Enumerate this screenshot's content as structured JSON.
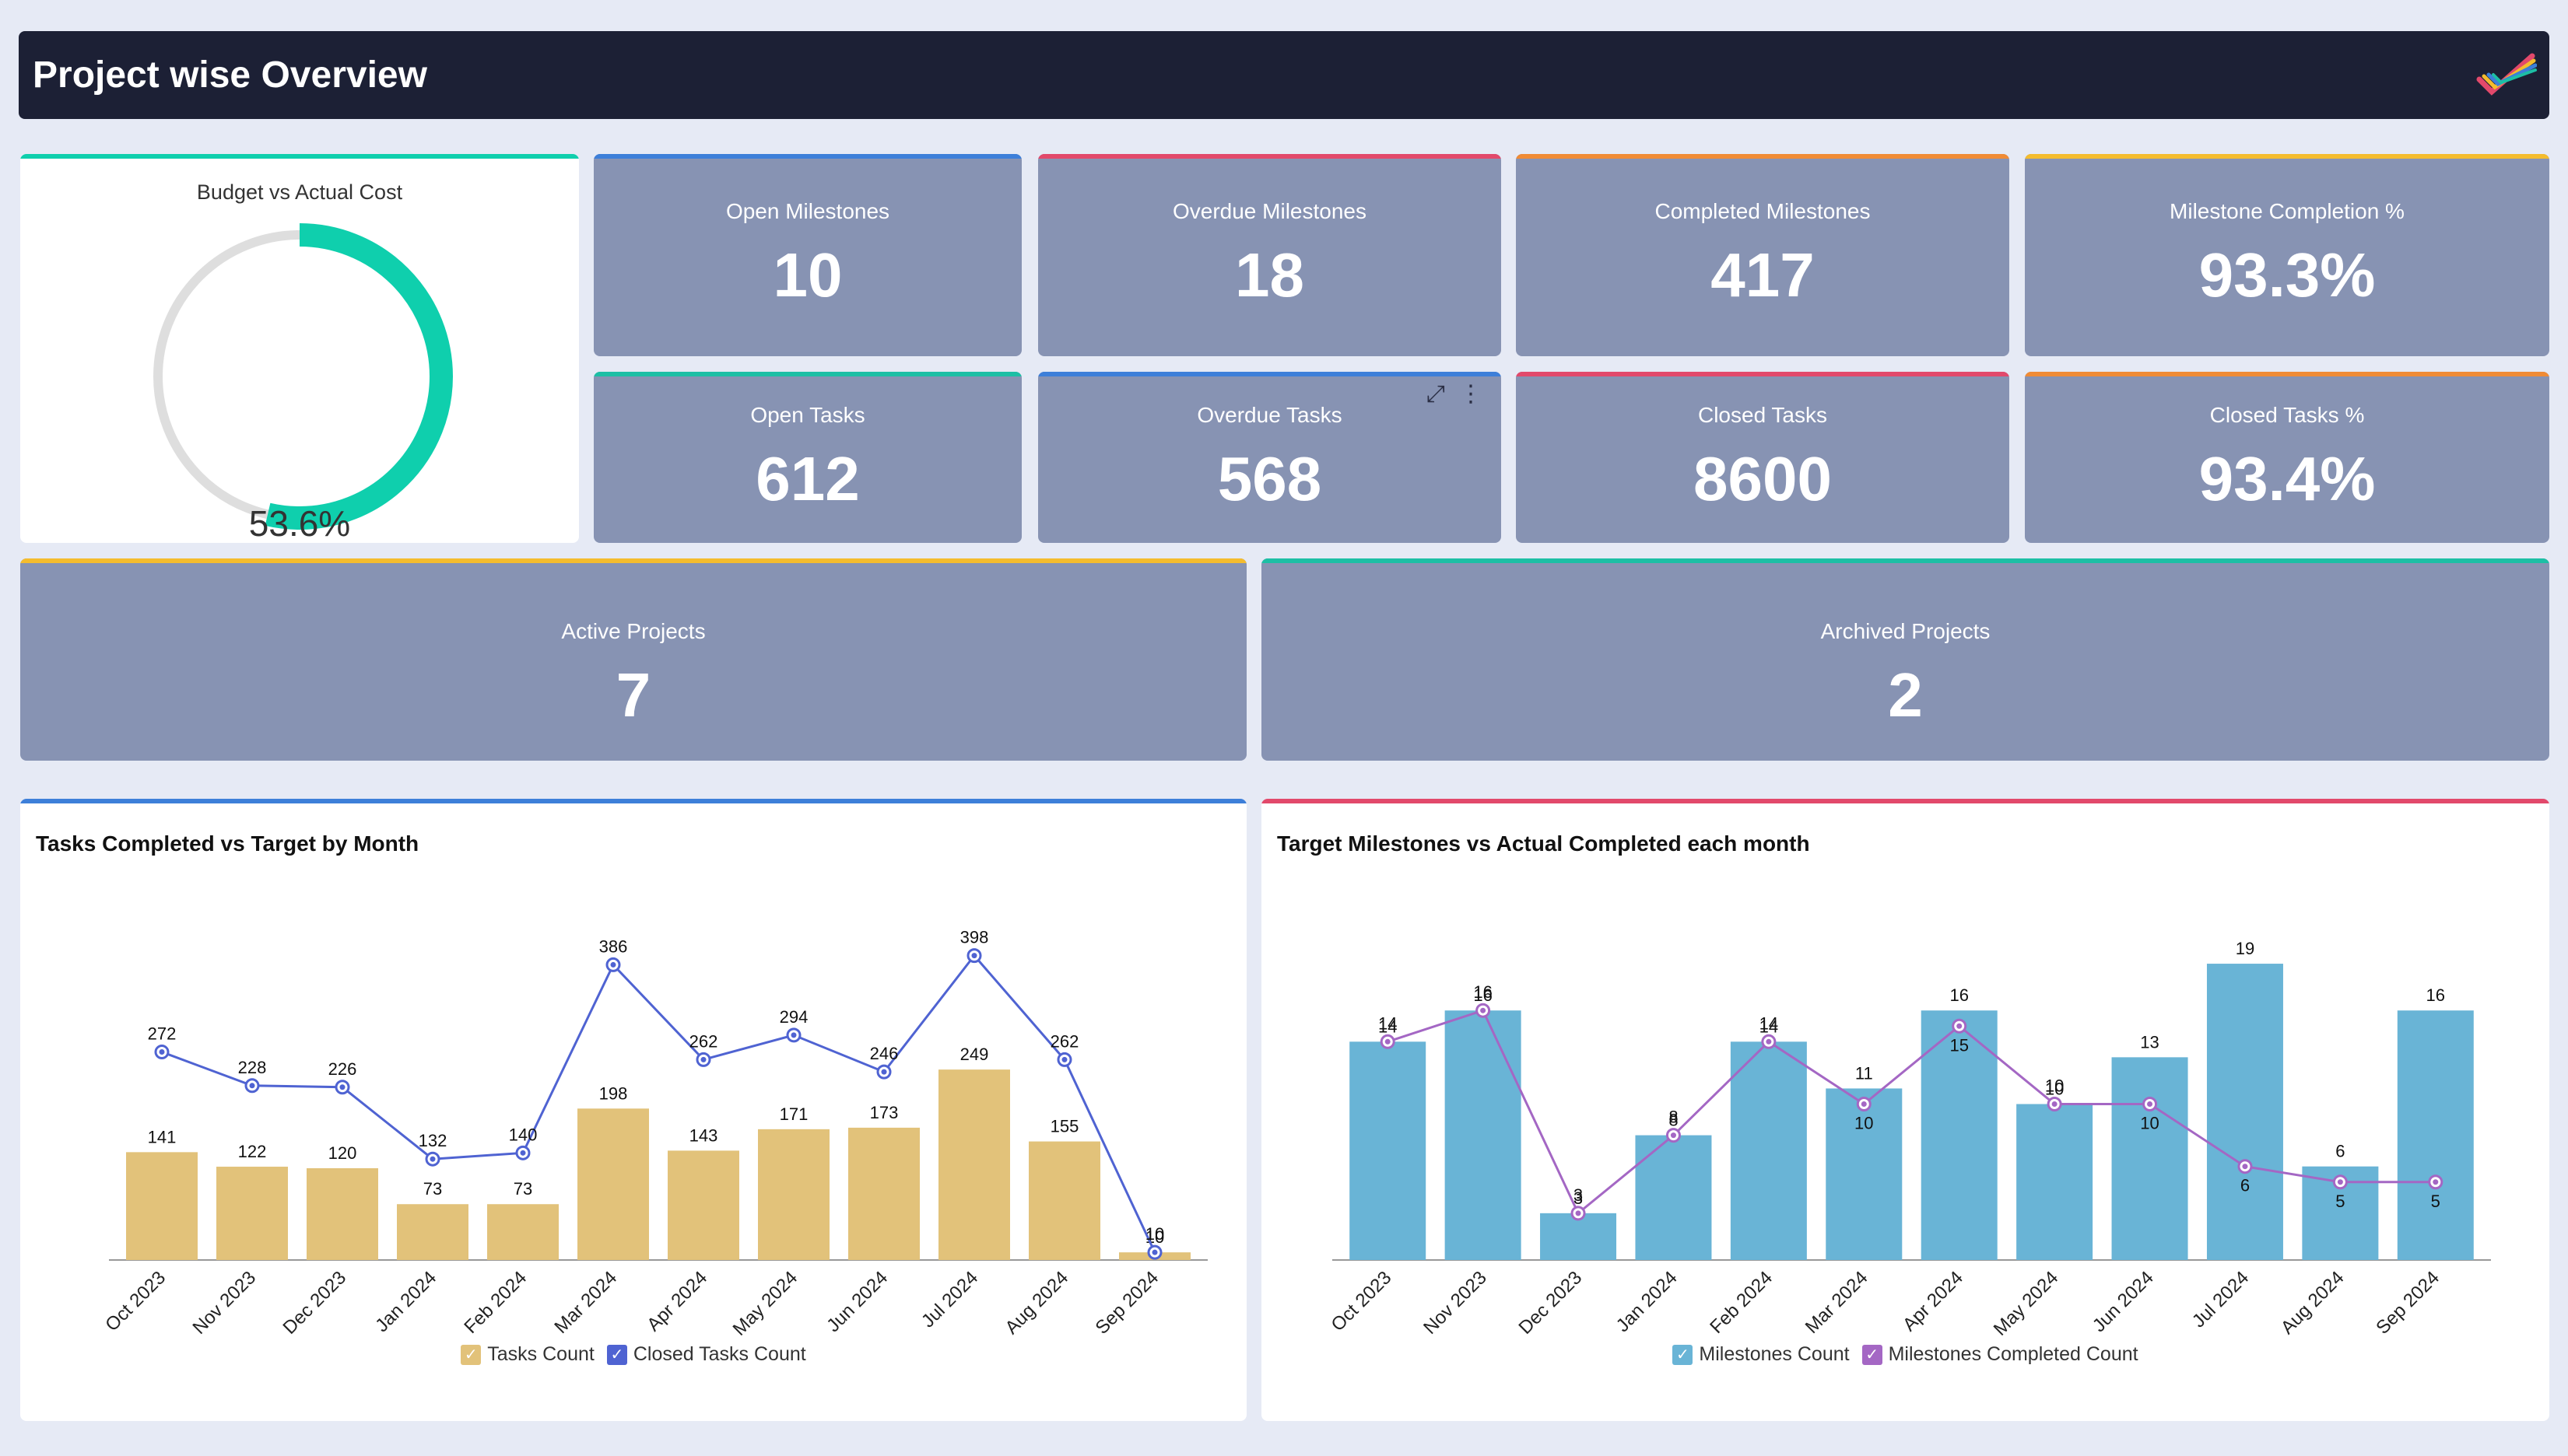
{
  "header": {
    "title": "Project wise Overview",
    "logo_icon": "checkmark-logo-icon"
  },
  "budget": {
    "title": "Budget vs Actual Cost",
    "value_text": "53.6%",
    "percent": 53.6,
    "color": "#0fcfad",
    "track_color": "#dedede"
  },
  "kpis": [
    {
      "label": "Open Milestones",
      "value": "10",
      "accent": "#3d7fd9"
    },
    {
      "label": "Overdue Milestones",
      "value": "18",
      "accent": "#e2496b"
    },
    {
      "label": "Completed Milestones",
      "value": "417",
      "accent": "#f08b35"
    },
    {
      "label": "Milestone Completion %",
      "value": "93.3%",
      "accent": "#f4bc2e"
    },
    {
      "label": "Open Tasks",
      "value": "612",
      "accent": "#1dbfa5"
    },
    {
      "label": "Overdue Tasks",
      "value": "568",
      "accent": "#3d7fd9"
    },
    {
      "label": "Closed Tasks",
      "value": "8600",
      "accent": "#e2496b"
    },
    {
      "label": "Closed Tasks %",
      "value": "93.4%",
      "accent": "#f08b35"
    }
  ],
  "projects": [
    {
      "label": "Active Projects",
      "value": "7",
      "accent": "#f4bc2e"
    },
    {
      "label": "Archived Projects",
      "value": "2",
      "accent": "#1dbfa5"
    }
  ],
  "widget_tools": {
    "expand_icon": "⤢",
    "menu_icon": "⋮"
  },
  "chart_data": [
    {
      "type": "bar",
      "title": "Tasks Completed vs Target by Month",
      "categories": [
        "Oct 2023",
        "Nov 2023",
        "Dec 2023",
        "Jan 2024",
        "Feb 2024",
        "Mar 2024",
        "Apr 2024",
        "May 2024",
        "Jun 2024",
        "Jul 2024",
        "Aug 2024",
        "Sep 2024"
      ],
      "series": [
        {
          "name": "Tasks Count",
          "kind": "bar",
          "color": "#e2c27a",
          "values": [
            141,
            122,
            120,
            73,
            73,
            198,
            143,
            171,
            173,
            249,
            155,
            10
          ]
        },
        {
          "name": "Closed Tasks Count",
          "kind": "line",
          "color": "#4f63d2",
          "values": [
            272,
            228,
            226,
            132,
            140,
            386,
            262,
            294,
            246,
            398,
            262,
            10
          ]
        }
      ],
      "ylim": [
        0,
        420
      ],
      "accent": "#3d7fd9"
    },
    {
      "type": "bar",
      "title": "Target Milestones vs Actual Completed each month",
      "categories": [
        "Oct 2023",
        "Nov 2023",
        "Dec 2023",
        "Jan 2024",
        "Feb 2024",
        "Mar 2024",
        "Apr 2024",
        "May 2024",
        "Jun 2024",
        "Jul 2024",
        "Aug 2024",
        "Sep 2024"
      ],
      "series": [
        {
          "name": "Milestones Count",
          "kind": "bar",
          "color": "#69b4d6",
          "values": [
            14,
            16,
            3,
            8,
            14,
            11,
            16,
            10,
            13,
            19,
            6,
            16
          ]
        },
        {
          "name": "Milestones Completed Count",
          "kind": "line",
          "color": "#a467c4",
          "values": [
            14,
            16,
            3,
            8,
            14,
            10,
            15,
            10,
            10,
            6,
            5,
            5
          ]
        }
      ],
      "ylim": [
        0,
        20
      ],
      "accent": "#e2496b"
    }
  ]
}
